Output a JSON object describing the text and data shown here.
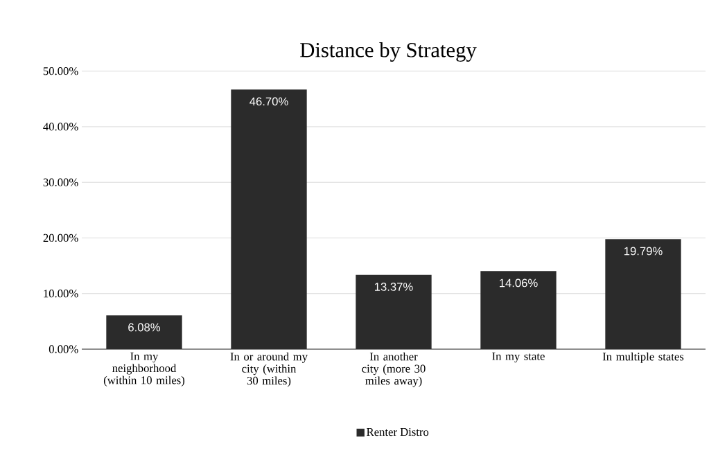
{
  "chart_data": {
    "type": "bar",
    "title": "Distance by Strategy",
    "categories": [
      "In my neighborhood (within 10 miles)",
      "In or around my city (within 30 miles)",
      "In another city (more 30 miles away)",
      "In my state",
      "In multiple states"
    ],
    "series": [
      {
        "name": "Renter Distro",
        "color": "#2b2b2b",
        "values": [
          6.08,
          46.7,
          13.37,
          14.06,
          19.79
        ],
        "value_labels": [
          "6.08%",
          "46.70%",
          "13.37%",
          "14.06%",
          "19.79%"
        ]
      }
    ],
    "ylim": [
      0,
      50
    ],
    "yticks": [
      {
        "value": 0,
        "label": "0.00%"
      },
      {
        "value": 10,
        "label": "10.00%"
      },
      {
        "value": 20,
        "label": "20.00%"
      },
      {
        "value": 30,
        "label": "30.00%"
      },
      {
        "value": 40,
        "label": "40.00%"
      },
      {
        "value": 50,
        "label": "50.00%"
      }
    ],
    "grid": "y",
    "legend": "bottom"
  }
}
